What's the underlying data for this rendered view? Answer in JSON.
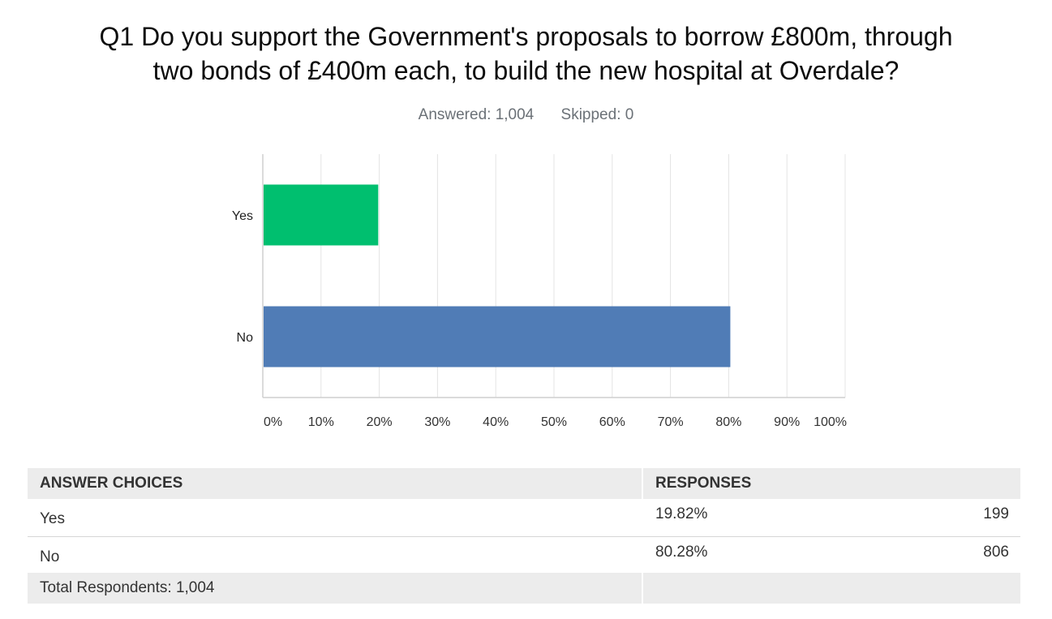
{
  "question": {
    "title_line1": "Q1 Do you support the Government's proposals to borrow £800m, through",
    "title_line2": "two bonds of £400m each, to build the new hospital at Overdale?",
    "answered": "Answered: 1,004",
    "skipped": "Skipped: 0"
  },
  "chart_data": {
    "type": "bar",
    "orientation": "horizontal",
    "categories": [
      "Yes",
      "No"
    ],
    "values": [
      19.82,
      80.28
    ],
    "colors": [
      "#00bf6f",
      "#507cb6"
    ],
    "xlim": [
      0,
      100
    ],
    "x_ticks": [
      "0%",
      "10%",
      "20%",
      "30%",
      "40%",
      "50%",
      "60%",
      "70%",
      "80%",
      "90%",
      "100%"
    ],
    "grid": true
  },
  "table": {
    "headers": [
      "ANSWER CHOICES",
      "RESPONSES"
    ],
    "rows": [
      {
        "choice": "Yes",
        "percent": "19.82%",
        "count": "199"
      },
      {
        "choice": "No",
        "percent": "80.28%",
        "count": "806"
      }
    ],
    "total": "Total Respondents: 1,004"
  }
}
